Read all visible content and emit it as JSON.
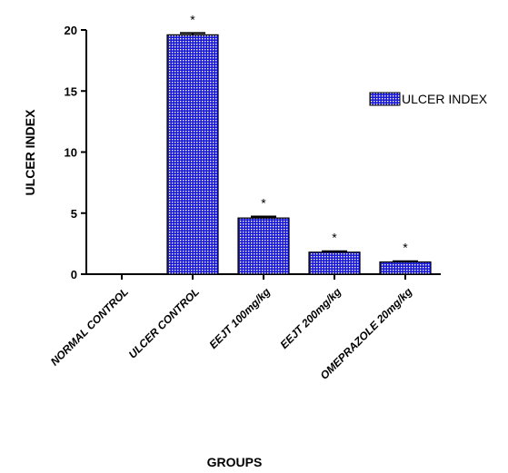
{
  "chart_data": {
    "type": "bar",
    "categories": [
      "NORMAL CONTROL",
      "ULCER CONTROL",
      "EEJT 100mg/kg",
      "EEJT 200mg/kg",
      "OMEPRAZOLE 20mg/kg"
    ],
    "series": [
      {
        "name": "ULCER INDEX",
        "values": [
          0,
          19.6,
          4.6,
          1.8,
          1.0
        ]
      }
    ],
    "error": [
      0,
      0.15,
      0.12,
      0.08,
      0.06
    ],
    "annotations": [
      "",
      "*",
      "*",
      "*",
      "*"
    ],
    "xlabel": "GROUPS",
    "ylabel": "ULCER INDEX",
    "ylim": [
      0,
      20
    ],
    "yticks": [
      0,
      5,
      10,
      15,
      20
    ],
    "legend_position": "right",
    "grid": false,
    "bar_color": "#1a1ad6",
    "pattern_color": "#ffffff"
  }
}
